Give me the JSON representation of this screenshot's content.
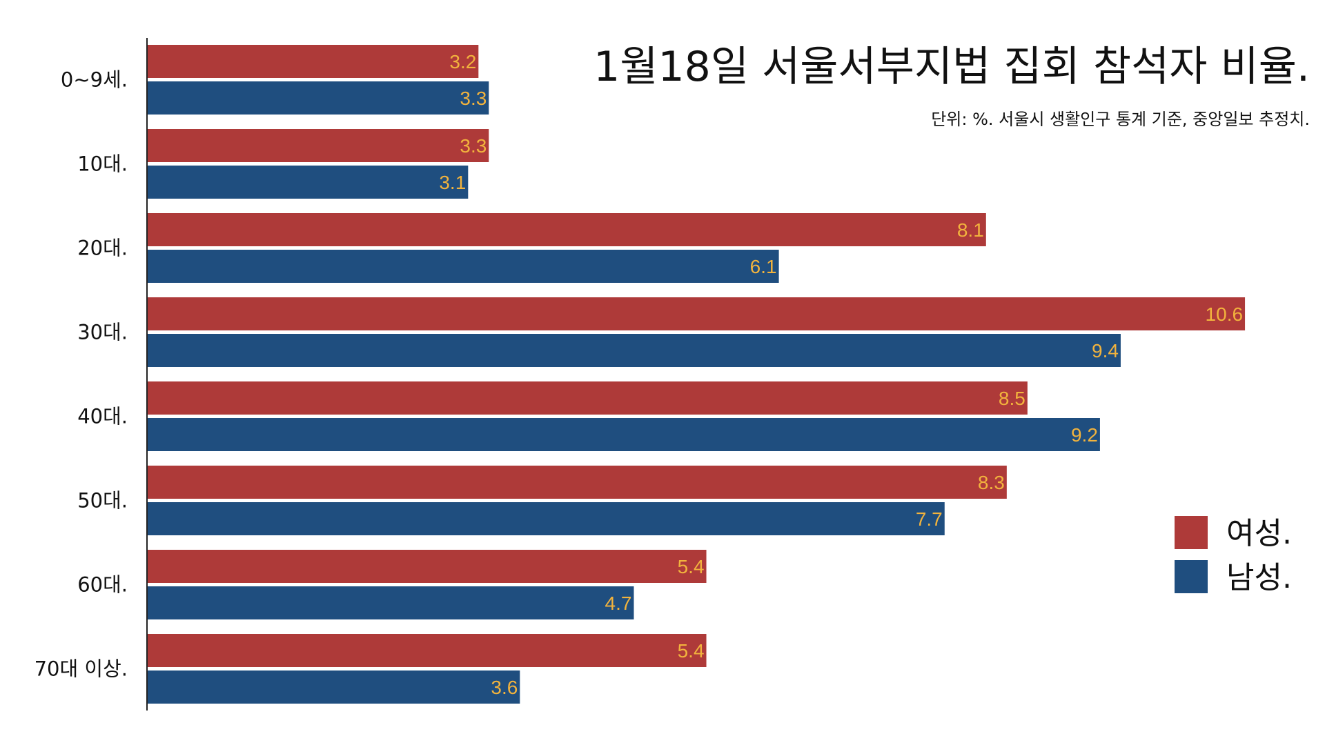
{
  "chart_data": {
    "type": "bar",
    "orientation": "horizontal",
    "title": "1월18일 서울서부지법 집회 참석자 비율.",
    "subtitle": "단위: %. 서울시 생활인구 통계 기준, 중앙일보 추정치.",
    "categories": [
      "0~9세.",
      "10대.",
      "20대.",
      "30대.",
      "40대.",
      "50대.",
      "60대.",
      "70대 이상."
    ],
    "series": [
      {
        "name": "여성.",
        "color": "#ae3a39",
        "values": [
          3.2,
          3.3,
          8.1,
          10.6,
          8.5,
          8.3,
          5.4,
          5.4
        ]
      },
      {
        "name": "남성.",
        "color": "#1f4e7f",
        "values": [
          3.3,
          3.1,
          6.1,
          9.4,
          9.2,
          7.7,
          4.7,
          3.6
        ]
      }
    ],
    "data_label_color": "#f2b33d",
    "xlim": [
      0,
      11.6
    ],
    "grid": false,
    "legend_position": "right"
  }
}
